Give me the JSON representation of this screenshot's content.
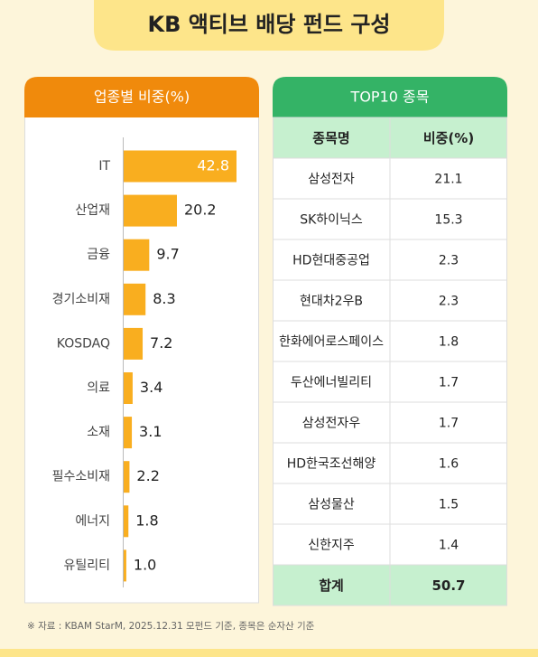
{
  "title": "KB 액티브 배당 펀드 구성",
  "chart_data": {
    "type": "bar",
    "orientation": "horizontal",
    "title": "업종별 비중(%)",
    "categories": [
      "IT",
      "산업재",
      "금융",
      "경기소비재",
      "KOSDAQ",
      "의료",
      "소재",
      "필수소비재",
      "에너지",
      "유틸리티"
    ],
    "values": [
      42.8,
      20.2,
      9.7,
      8.3,
      7.2,
      3.4,
      3.1,
      2.2,
      1.8,
      1.0
    ],
    "value_labels": [
      "42.8",
      "20.2",
      "9.7",
      "8.3",
      "7.2",
      "3.4",
      "3.1",
      "2.2",
      "1.8",
      "1.0"
    ],
    "color": "#f9ae1f"
  },
  "table": {
    "title": "TOP10 종목",
    "header": [
      "종목명",
      "비중(%)"
    ],
    "rows": [
      [
        "삼성전자",
        21.1
      ],
      [
        "SK하이닉스",
        15.3
      ],
      [
        "HD현대중공업",
        2.3
      ],
      [
        "현대차2우B",
        2.3
      ],
      [
        "한화에어로스페이스",
        1.8
      ],
      [
        "두산에너빌리티",
        1.7
      ],
      [
        "삼성전자우",
        1.7
      ],
      [
        "HD한국조선해양",
        1.6
      ],
      [
        "삼성물산",
        1.5
      ],
      [
        "신한지주",
        1.4
      ]
    ],
    "footer": [
      "합계",
      50.7
    ]
  },
  "source": "※ 자료 : KBAM StarM, 2025.12.31 모펀드 기준, 종목은 순자산 기준"
}
